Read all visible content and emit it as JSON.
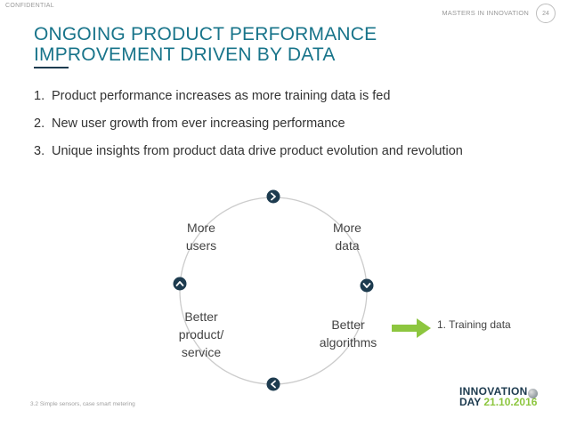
{
  "header": {
    "confidential": "CONFIDENTIAL",
    "brand": "MASTERS IN INNOVATION",
    "page_number": "24"
  },
  "slide": {
    "title_line1": "ONGOING PRODUCT PERFORMANCE",
    "title_line2": "IMPROVEMENT DRIVEN BY DATA",
    "bullets": [
      {
        "num": "1.",
        "text": "Product performance increases as more training data is fed"
      },
      {
        "num": "2.",
        "text": "New user growth from ever increasing performance"
      },
      {
        "num": "3.",
        "text": "Unique insights from product data drive product evolution and revolution"
      }
    ]
  },
  "cycle": {
    "nodes": {
      "more_users": [
        "More",
        "users"
      ],
      "more_data": [
        "More",
        "data"
      ],
      "better_algorithms": [
        "Better",
        "algorithms"
      ],
      "better_product": [
        "Better",
        "product/",
        "service"
      ]
    },
    "arrow_label": "1. Training data"
  },
  "footer": {
    "footnote": "3.2 Simple sensors, case smart metering",
    "logo_line1": "INNOVATION",
    "logo_day": "DAY",
    "logo_date": "21.10.2016"
  },
  "colors": {
    "title": "#18748a",
    "rule": "#1d3b4f",
    "node_circle": "#1d3b4f",
    "cycle_line": "#cccccc",
    "green_arrow": "#8dc63f",
    "logo_green": "#8dc63f"
  },
  "icons": {
    "top": "chevron-right-icon",
    "right": "chevron-down-icon",
    "bottom": "chevron-left-icon",
    "left": "chevron-up-icon"
  }
}
